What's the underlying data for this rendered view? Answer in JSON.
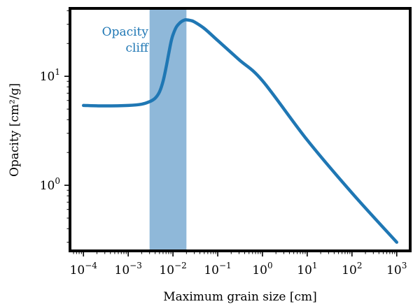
{
  "chart_data": {
    "type": "line",
    "xlabel": "Maximum grain size [cm]",
    "ylabel": "Opacity [cm²/g]",
    "x_scale": "log",
    "y_scale": "log",
    "xlim": [
      5e-05,
      2000
    ],
    "ylim": [
      0.25,
      42
    ],
    "grid": false,
    "legend": "none",
    "x_ticks": [
      {
        "value": 0.0001,
        "base": "10",
        "exp": "−4"
      },
      {
        "value": 0.001,
        "base": "10",
        "exp": "−3"
      },
      {
        "value": 0.01,
        "base": "10",
        "exp": "−2"
      },
      {
        "value": 0.1,
        "base": "10",
        "exp": "−1"
      },
      {
        "value": 1,
        "base": "10",
        "exp": "0"
      },
      {
        "value": 10,
        "base": "10",
        "exp": "1"
      },
      {
        "value": 100,
        "base": "10",
        "exp": "2"
      },
      {
        "value": 1000,
        "base": "10",
        "exp": "3"
      }
    ],
    "y_ticks": [
      {
        "value": 1,
        "base": "10",
        "exp": "0"
      },
      {
        "value": 10,
        "base": "10",
        "exp": "1"
      }
    ],
    "shaded_region": {
      "x0": 0.003,
      "x1": 0.02,
      "color": "#8fb8d9"
    },
    "annotation": {
      "lines": [
        "Opacity",
        "cliff"
      ],
      "color": "#1f77b4"
    },
    "series": [
      {
        "color": "#1f77b4",
        "x": [
          0.0001,
          0.0003,
          0.001,
          0.002,
          0.003,
          0.004,
          0.005,
          0.006,
          0.007,
          0.008,
          0.009,
          0.01,
          0.012,
          0.015,
          0.018,
          0.02,
          0.025,
          0.03,
          0.05,
          0.1,
          0.3,
          1,
          10,
          100,
          1000
        ],
        "y": [
          5.4,
          5.35,
          5.4,
          5.55,
          5.85,
          6.3,
          7.2,
          9.0,
          12.0,
          16.0,
          20.5,
          24.0,
          28.5,
          31.5,
          32.8,
          33.0,
          32.5,
          31.6,
          27.5,
          21.3,
          14.2,
          9.1,
          2.6,
          0.85,
          0.3
        ]
      }
    ]
  }
}
